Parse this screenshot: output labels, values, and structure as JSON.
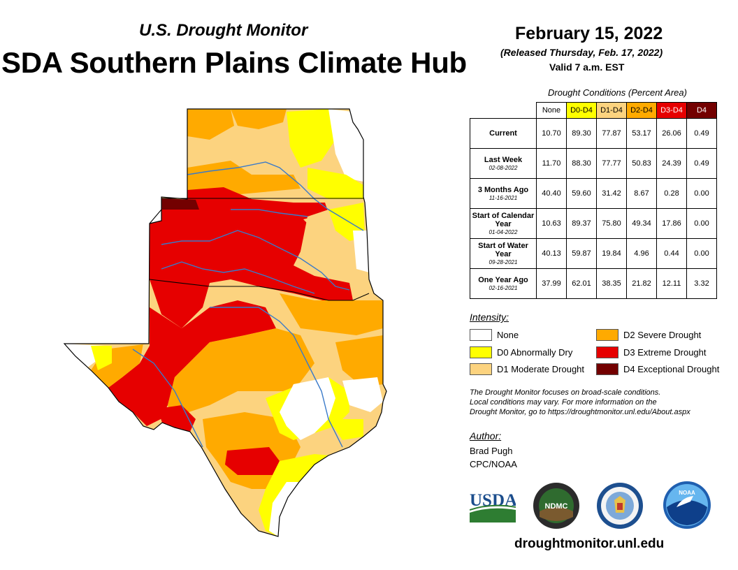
{
  "header": {
    "subtitle": "U.S. Drought Monitor",
    "hub_title": "SDA Southern Plains Climate Hub",
    "date": "February 15, 2022",
    "released": "(Released Thursday, Feb. 17, 2022)",
    "valid": "Valid 7 a.m. EST"
  },
  "table": {
    "caption": "Drought Conditions (Percent Area)",
    "columns": [
      {
        "label": "None",
        "bg": "#ffffff",
        "fg": "#000000"
      },
      {
        "label": "D0-D4",
        "bg": "#ffff00",
        "fg": "#000000"
      },
      {
        "label": "D1-D4",
        "bg": "#fcd37f",
        "fg": "#000000"
      },
      {
        "label": "D2-D4",
        "bg": "#ffaa00",
        "fg": "#000000"
      },
      {
        "label": "D3-D4",
        "bg": "#e60000",
        "fg": "#ffffff"
      },
      {
        "label": "D4",
        "bg": "#730000",
        "fg": "#ffffff"
      }
    ],
    "rows": [
      {
        "label": "Current",
        "date": "",
        "values": [
          "10.70",
          "89.30",
          "77.87",
          "53.17",
          "26.06",
          "0.49"
        ]
      },
      {
        "label": "Last Week",
        "date": "02-08-2022",
        "values": [
          "11.70",
          "88.30",
          "77.77",
          "50.83",
          "24.39",
          "0.49"
        ]
      },
      {
        "label": "3 Months Ago",
        "date": "11-16-2021",
        "values": [
          "40.40",
          "59.60",
          "31.42",
          "8.67",
          "0.28",
          "0.00"
        ]
      },
      {
        "label": "Start of Calendar Year",
        "date": "01-04-2022",
        "values": [
          "10.63",
          "89.37",
          "75.80",
          "49.34",
          "17.86",
          "0.00"
        ]
      },
      {
        "label": "Start of Water Year",
        "date": "09-28-2021",
        "values": [
          "40.13",
          "59.87",
          "19.84",
          "4.96",
          "0.44",
          "0.00"
        ]
      },
      {
        "label": "One Year Ago",
        "date": "02-16-2021",
        "values": [
          "37.99",
          "62.01",
          "38.35",
          "21.82",
          "12.11",
          "3.32"
        ]
      }
    ]
  },
  "legend": {
    "title": "Intensity:",
    "items": [
      {
        "label": "None",
        "color": "#ffffff"
      },
      {
        "label": "D0 Abnormally Dry",
        "color": "#ffff00"
      },
      {
        "label": "D1 Moderate Drought",
        "color": "#fcd37f"
      },
      {
        "label": "D2 Severe Drought",
        "color": "#ffaa00"
      },
      {
        "label": "D3 Extreme Drought",
        "color": "#e60000"
      },
      {
        "label": "D4 Exceptional Drought",
        "color": "#730000"
      }
    ]
  },
  "note": {
    "line1": "The Drought Monitor focuses on broad-scale conditions.",
    "line2": "Local conditions may vary. For more information on the",
    "line3": "Drought Monitor, go to https://droughtmonitor.unl.edu/About.aspx"
  },
  "author": {
    "title": "Author:",
    "name": "Brad Pugh",
    "org": "CPC/NOAA"
  },
  "logos": {
    "usda": "USDA",
    "ndmc": "NDMC",
    "noaa": "NOAA"
  },
  "footer": {
    "url": "droughtmonitor.unl.edu"
  },
  "map": {
    "regions": [
      "Kansas",
      "Oklahoma",
      "Texas"
    ],
    "colors": {
      "none": "#ffffff",
      "d0": "#ffff00",
      "d1": "#fcd37f",
      "d2": "#ffaa00",
      "d3": "#e60000",
      "d4": "#730000",
      "river": "#3a7ac9",
      "border": "#000000"
    }
  }
}
